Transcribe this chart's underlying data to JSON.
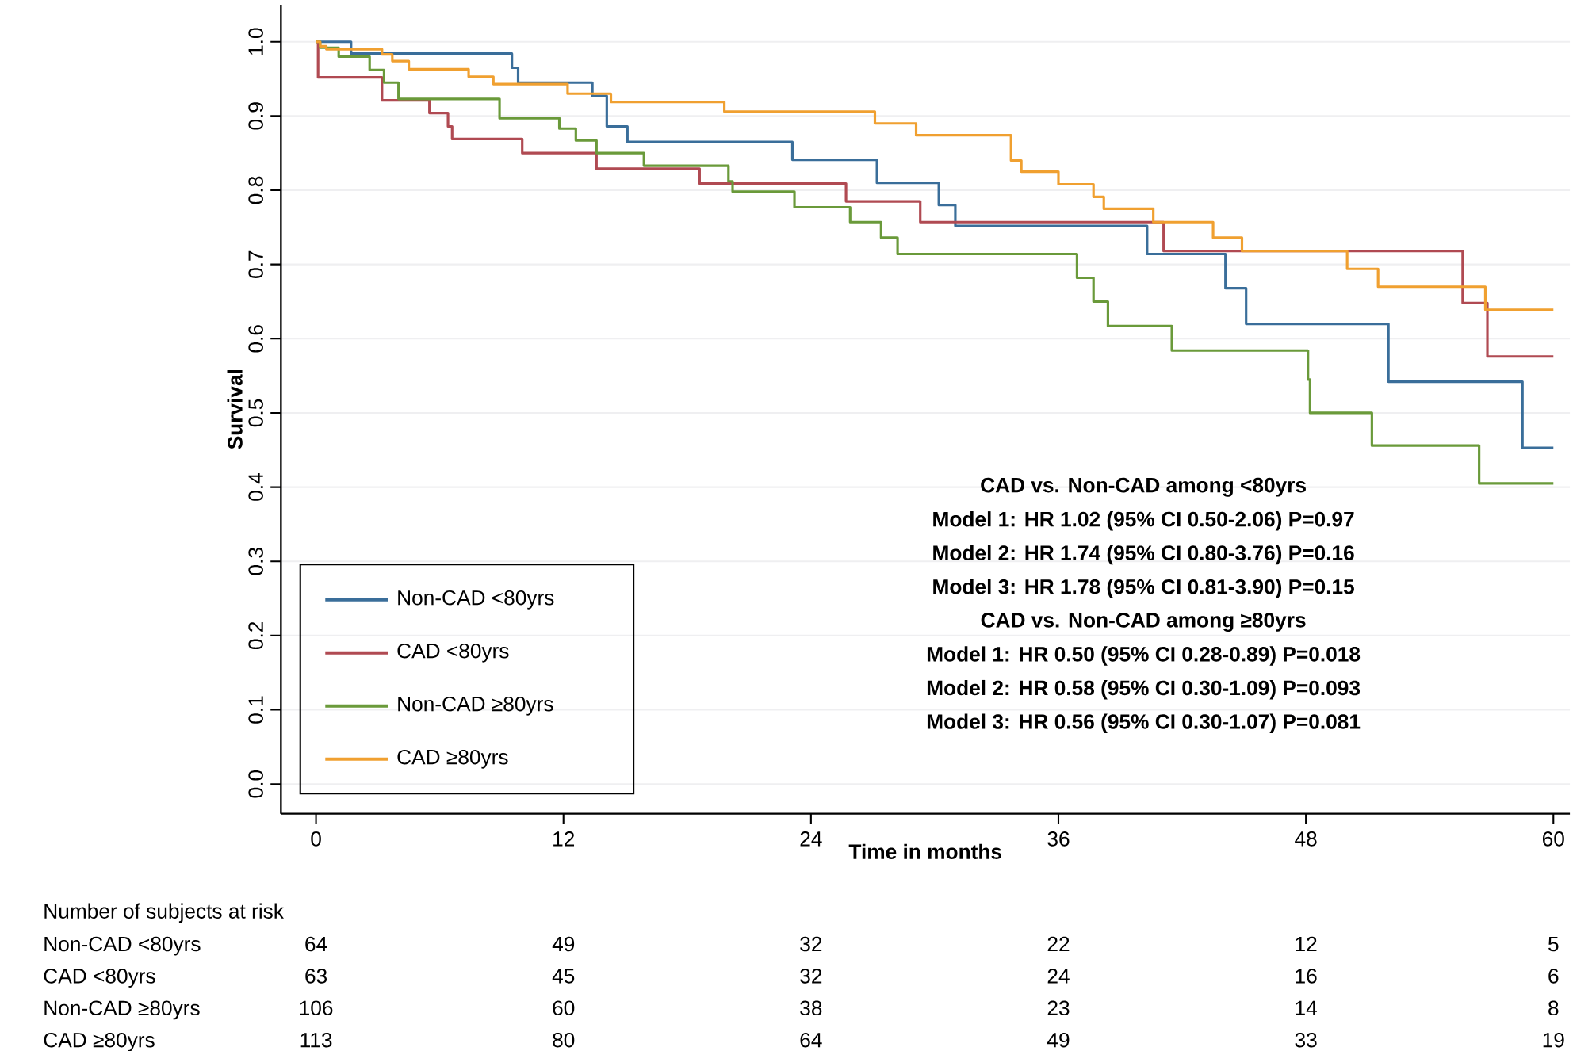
{
  "chart_data": {
    "type": "step",
    "xlabel": "Time in months",
    "ylabel": "Survival",
    "xlim": [
      -1.7,
      60.8
    ],
    "ylim": [
      -0.04,
      1.05
    ],
    "xticks": [
      0,
      12,
      24,
      36,
      48,
      60
    ],
    "yticks": [
      {
        "value": 0,
        "label": "0.0"
      },
      {
        "value": 0.1,
        "label": "0.1"
      },
      {
        "value": 0.2,
        "label": "0.2"
      },
      {
        "value": 0.3,
        "label": "0.3"
      },
      {
        "value": 0.4,
        "label": "0.4"
      },
      {
        "value": 0.5,
        "label": "0.5"
      },
      {
        "value": 0.6,
        "label": "0.6"
      },
      {
        "value": 0.7,
        "label": "0.7"
      },
      {
        "value": 0.8,
        "label": "0.8"
      },
      {
        "value": 0.9,
        "label": "0.9"
      },
      {
        "value": 1,
        "label": "1.0"
      }
    ],
    "grid": "y",
    "legend": "bottom left",
    "marker": "none",
    "line_style": "solid",
    "series": [
      {
        "name": "Non-CAD <80yrs",
        "color": "#3a6e9a",
        "x": [
          0,
          1.7,
          9.5,
          9.8,
          13.4,
          14.1,
          15.1,
          23.1,
          27.2,
          30.2,
          31.0,
          40.3,
          44.1,
          45.1,
          52.0,
          58.5,
          60
        ],
        "values": [
          1,
          0.984,
          0.965,
          0.945,
          0.927,
          0.886,
          0.865,
          0.841,
          0.81,
          0.78,
          0.752,
          0.714,
          0.668,
          0.62,
          0.542,
          0.453,
          0.453
        ]
      },
      {
        "name": "CAD <80yrs",
        "color": "#b04a52",
        "x": [
          0,
          0.1,
          3.2,
          5.5,
          6.4,
          6.6,
          10.0,
          13.6,
          18.6,
          25.7,
          29.3,
          41.1,
          55.6,
          56.8,
          60
        ],
        "values": [
          1,
          0.952,
          0.921,
          0.904,
          0.886,
          0.869,
          0.85,
          0.829,
          0.809,
          0.785,
          0.757,
          0.718,
          0.648,
          0.576,
          0.576
        ]
      },
      {
        "name": "Non-CAD ≥80yrs",
        "color": "#6a9a3a",
        "x": [
          0,
          0.2,
          1.1,
          2.6,
          3.3,
          4.0,
          8.9,
          11.8,
          12.6,
          13.6,
          15.9,
          20.0,
          20.2,
          23.2,
          25.9,
          27.4,
          28.2,
          36.9,
          37.7,
          38.4,
          41.5,
          48.1,
          48.2,
          51.2,
          56.4,
          60
        ],
        "values": [
          1,
          0.992,
          0.98,
          0.962,
          0.945,
          0.923,
          0.897,
          0.883,
          0.867,
          0.85,
          0.833,
          0.812,
          0.798,
          0.777,
          0.757,
          0.736,
          0.714,
          0.682,
          0.65,
          0.617,
          0.584,
          0.545,
          0.5,
          0.456,
          0.405,
          0.405
        ]
      },
      {
        "name": "CAD ≥80yrs",
        "color": "#f0a030",
        "x": [
          0,
          0.2,
          0.5,
          3.2,
          3.7,
          4.5,
          7.4,
          8.6,
          12.2,
          14.3,
          19.8,
          27.1,
          29.1,
          33.7,
          34.2,
          36.0,
          37.7,
          38.2,
          40.6,
          43.5,
          44.9,
          50.0,
          51.5,
          56.7,
          60
        ],
        "values": [
          1,
          0.994,
          0.99,
          0.983,
          0.974,
          0.963,
          0.953,
          0.943,
          0.93,
          0.919,
          0.906,
          0.89,
          0.874,
          0.84,
          0.825,
          0.808,
          0.791,
          0.775,
          0.757,
          0.736,
          0.718,
          0.694,
          0.67,
          0.639,
          0.639
        ]
      }
    ],
    "annotations": [
      "CAD vs. Non-CAD among <80yrs",
      "Model 1: HR 1.02 (95% CI 0.50-2.06) P=0.97",
      "Model 2: HR 1.74 (95% CI 0.80-3.76) P=0.16",
      "Model 3: HR 1.78 (95% CI 0.81-3.90) P=0.15",
      "CAD vs. Non-CAD among ≥80yrs",
      "Model 1: HR 0.50 (95% CI 0.28-0.89) P=0.018",
      "Model 2: HR 0.58 (95% CI 0.30-1.09) P=0.093",
      "Model 3: HR 0.56 (95% CI 0.30-1.07) P=0.081",
      "Number of subjects at risk",
      "Non-CAD <80yrs",
      "64",
      "49",
      "32",
      "22",
      "12",
      "5",
      "CAD <80yrs",
      "63",
      "45",
      "32",
      "24",
      "16",
      "6",
      "Non-CAD ≥80yrs",
      "106",
      "60",
      "38",
      "23",
      "14",
      "8",
      "CAD ≥80yrs",
      "113",
      "80",
      "64",
      "49",
      "33",
      "19"
    ]
  }
}
